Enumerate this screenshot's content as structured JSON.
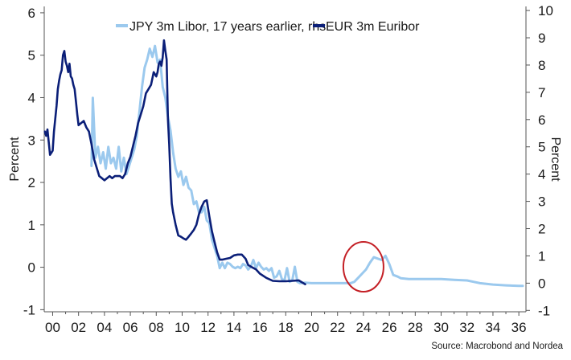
{
  "chart_data": {
    "type": "line",
    "title": "",
    "xlabel": "",
    "ylabel": "Percent",
    "y2label": "Percent",
    "source": "Source: Macrobond and Nordea",
    "x_ticks": [
      "00",
      "02",
      "04",
      "06",
      "08",
      "10",
      "12",
      "14",
      "16",
      "18",
      "20",
      "22",
      "24",
      "26",
      "28",
      "30",
      "32",
      "34",
      "36"
    ],
    "y_ticks": [
      "-1",
      "0",
      "1",
      "2",
      "3",
      "4",
      "5",
      "6"
    ],
    "y2_ticks": [
      "-1",
      "0",
      "1",
      "2",
      "3",
      "4",
      "5",
      "6",
      "7",
      "8",
      "9",
      "10"
    ],
    "ylim": [
      -1.05,
      6.15
    ],
    "y2lim": [
      -1.05,
      10.15
    ],
    "xlim": [
      1999.35,
      2036.55
    ],
    "grid": false,
    "legend_position": "top",
    "series": [
      {
        "name": "JPY 3m Libor, 17 years earlier, rhs",
        "axis": "right",
        "color": "#9bc9ee",
        "x": [
          2003.0,
          2003.1,
          2003.3,
          2003.5,
          2003.7,
          2003.9,
          2004.1,
          2004.3,
          2004.5,
          2004.7,
          2004.9,
          2005.1,
          2005.3,
          2005.5,
          2005.7,
          2005.9,
          2006.1,
          2006.3,
          2006.5,
          2006.7,
          2006.9,
          2007.1,
          2007.3,
          2007.5,
          2007.7,
          2007.9,
          2008.1,
          2008.3,
          2008.5,
          2008.7,
          2008.9,
          2009.1,
          2009.3,
          2009.5,
          2009.7,
          2009.9,
          2010.1,
          2010.3,
          2010.5,
          2010.7,
          2010.9,
          2011.1,
          2011.3,
          2011.5,
          2011.7,
          2011.9,
          2012.1,
          2012.3,
          2012.5,
          2012.7,
          2012.9,
          2013.1,
          2013.3,
          2013.5,
          2013.7,
          2013.9,
          2014.1,
          2014.3,
          2014.5,
          2014.7,
          2014.9,
          2015.1,
          2015.3,
          2015.5,
          2015.7,
          2015.9,
          2016.1,
          2016.3,
          2016.5,
          2016.7,
          2016.9,
          2017.1,
          2017.3,
          2017.5,
          2017.7,
          2017.9,
          2018.1,
          2018.3,
          2018.5,
          2018.7,
          2018.9,
          2019.1,
          2019.5,
          2020.0,
          2020.5,
          2021.0,
          2021.5,
          2022.0,
          2022.5,
          2023.0,
          2023.3,
          2023.6,
          2023.9,
          2024.2,
          2024.5,
          2024.8,
          2025.1,
          2025.4,
          2025.7,
          2026.0,
          2026.3,
          2026.6,
          2026.9,
          2027.5,
          2028.0,
          2029.0,
          2030.0,
          2031.0,
          2032.0,
          2032.5,
          2033.0,
          2034.0,
          2035.0,
          2036.0,
          2036.3
        ],
        "y": [
          4.3,
          6.8,
          4.6,
          5.0,
          4.4,
          4.8,
          4.2,
          5.0,
          4.4,
          4.6,
          4.2,
          5.0,
          4.1,
          4.6,
          4.0,
          4.3,
          4.6,
          4.9,
          5.4,
          6.3,
          7.2,
          7.9,
          8.2,
          8.6,
          8.3,
          8.7,
          8.1,
          8.2,
          7.2,
          6.8,
          6.1,
          5.6,
          4.8,
          4.2,
          3.9,
          4.1,
          3.6,
          3.9,
          3.5,
          3.4,
          2.9,
          3.0,
          2.6,
          2.6,
          2.8,
          2.3,
          2.2,
          1.6,
          1.3,
          1.0,
          0.55,
          0.75,
          0.55,
          0.75,
          0.7,
          0.6,
          0.55,
          0.6,
          0.55,
          0.7,
          0.65,
          0.5,
          0.6,
          0.85,
          0.55,
          0.75,
          0.6,
          0.5,
          0.55,
          0.45,
          0.55,
          0.2,
          0.25,
          0.45,
          0.15,
          0.1,
          0.55,
          0.05,
          0.1,
          0.6,
          0.05,
          0.0,
          0.02,
          0.0,
          0.0,
          0.0,
          0.0,
          0.0,
          0.0,
          0.0,
          0.05,
          0.2,
          0.35,
          0.5,
          0.75,
          0.95,
          0.9,
          0.85,
          1.0,
          0.7,
          0.3,
          0.25,
          0.18,
          0.15,
          0.15,
          0.15,
          0.15,
          0.12,
          0.1,
          0.05,
          0.0,
          -0.05,
          -0.08,
          -0.1,
          -0.1
        ]
      },
      {
        "name": "EUR 3m Euribor",
        "axis": "left",
        "color": "#0b1f78",
        "x": [
          1999.4,
          1999.5,
          1999.6,
          1999.7,
          1999.8,
          1999.9,
          2000.0,
          2000.1,
          2000.2,
          2000.3,
          2000.4,
          2000.5,
          2000.6,
          2000.7,
          2000.8,
          2000.9,
          2001.0,
          2001.1,
          2001.2,
          2001.3,
          2001.4,
          2001.5,
          2001.6,
          2001.7,
          2001.8,
          2001.9,
          2002.0,
          2002.2,
          2002.4,
          2002.6,
          2002.8,
          2003.0,
          2003.2,
          2003.4,
          2003.6,
          2003.8,
          2004.0,
          2004.2,
          2004.4,
          2004.6,
          2004.8,
          2005.0,
          2005.2,
          2005.4,
          2005.6,
          2005.8,
          2006.0,
          2006.2,
          2006.4,
          2006.6,
          2006.8,
          2007.0,
          2007.2,
          2007.4,
          2007.6,
          2007.8,
          2008.0,
          2008.1,
          2008.2,
          2008.3,
          2008.4,
          2008.5,
          2008.6,
          2008.7,
          2008.8,
          2008.9,
          2009.0,
          2009.1,
          2009.2,
          2009.3,
          2009.5,
          2009.7,
          2009.9,
          2010.1,
          2010.3,
          2010.5,
          2010.7,
          2010.9,
          2011.1,
          2011.3,
          2011.5,
          2011.7,
          2011.9,
          2012.1,
          2012.3,
          2012.5,
          2012.7,
          2012.9,
          2013.1,
          2013.4,
          2013.7,
          2014.0,
          2014.3,
          2014.6,
          2014.9,
          2015.1,
          2015.4,
          2015.7,
          2016.0,
          2016.5,
          2017.0,
          2017.5,
          2018.0,
          2018.5,
          2019.0,
          2019.5
        ],
        "y": [
          3.2,
          3.1,
          3.25,
          2.95,
          2.65,
          2.7,
          2.75,
          3.2,
          3.5,
          3.8,
          4.2,
          4.4,
          4.55,
          4.65,
          5.0,
          5.1,
          4.85,
          4.75,
          4.6,
          4.8,
          4.5,
          4.45,
          4.3,
          4.2,
          3.9,
          3.6,
          3.35,
          3.4,
          3.45,
          3.3,
          3.2,
          2.9,
          2.55,
          2.35,
          2.15,
          2.1,
          2.05,
          2.1,
          2.15,
          2.1,
          2.15,
          2.15,
          2.15,
          2.1,
          2.2,
          2.45,
          2.6,
          2.85,
          3.1,
          3.4,
          3.6,
          3.8,
          4.1,
          4.2,
          4.3,
          4.6,
          4.5,
          4.6,
          4.8,
          4.85,
          4.75,
          4.95,
          5.35,
          5.1,
          4.9,
          3.5,
          2.9,
          2.1,
          1.5,
          1.3,
          1.0,
          0.75,
          0.72,
          0.68,
          0.65,
          0.72,
          0.8,
          0.88,
          1.0,
          1.25,
          1.42,
          1.55,
          1.58,
          1.2,
          0.85,
          0.6,
          0.35,
          0.18,
          0.18,
          0.2,
          0.22,
          0.28,
          0.3,
          0.3,
          0.2,
          0.05,
          0.0,
          -0.05,
          -0.15,
          -0.25,
          -0.32,
          -0.33,
          -0.33,
          -0.32,
          -0.31,
          -0.4
        ]
      }
    ],
    "annotations": [
      {
        "type": "circle",
        "color": "#c42026",
        "x_center": 2024.0,
        "y2_center": 0.6
      }
    ]
  }
}
